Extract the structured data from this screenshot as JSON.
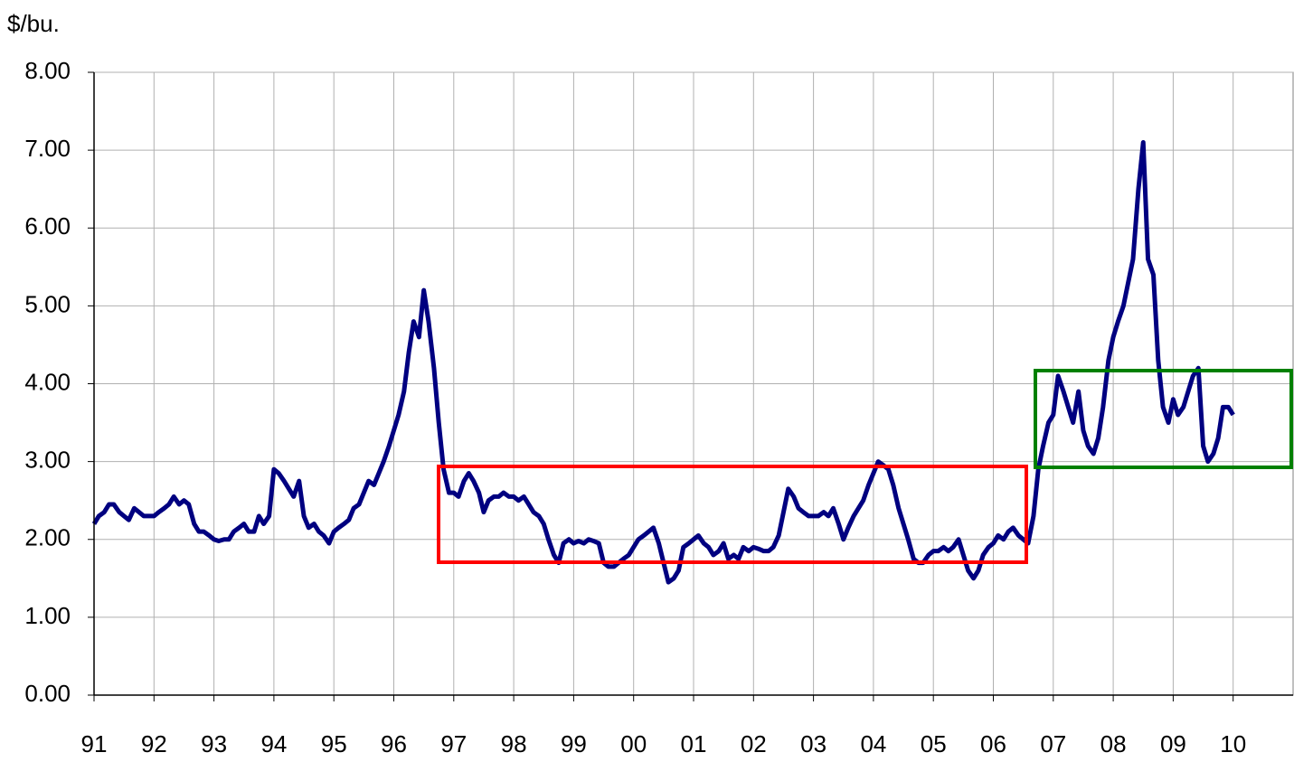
{
  "chart_data": {
    "type": "line",
    "y_label": "$/bu.",
    "xlim": [
      1991,
      2011
    ],
    "xticks": [
      {
        "value": 1991,
        "label": "91"
      },
      {
        "value": 1992,
        "label": "92"
      },
      {
        "value": 1993,
        "label": "93"
      },
      {
        "value": 1994,
        "label": "94"
      },
      {
        "value": 1995,
        "label": "95"
      },
      {
        "value": 1996,
        "label": "96"
      },
      {
        "value": 1997,
        "label": "97"
      },
      {
        "value": 1998,
        "label": "98"
      },
      {
        "value": 1999,
        "label": "99"
      },
      {
        "value": 2000,
        "label": "00"
      },
      {
        "value": 2001,
        "label": "01"
      },
      {
        "value": 2002,
        "label": "02"
      },
      {
        "value": 2003,
        "label": "03"
      },
      {
        "value": 2004,
        "label": "04"
      },
      {
        "value": 2005,
        "label": "05"
      },
      {
        "value": 2006,
        "label": "06"
      },
      {
        "value": 2007,
        "label": "07"
      },
      {
        "value": 2008,
        "label": "08"
      },
      {
        "value": 2009,
        "label": "09"
      },
      {
        "value": 2010,
        "label": "10"
      }
    ],
    "ylim": [
      0,
      8
    ],
    "yticks": [
      {
        "value": 0,
        "label": "0.00"
      },
      {
        "value": 1,
        "label": "1.00"
      },
      {
        "value": 2,
        "label": "2.00"
      },
      {
        "value": 3,
        "label": "3.00"
      },
      {
        "value": 4,
        "label": "4.00"
      },
      {
        "value": 5,
        "label": "5.00"
      },
      {
        "value": 6,
        "label": "6.00"
      },
      {
        "value": 7,
        "label": "7.00"
      },
      {
        "value": 8,
        "label": "8.00"
      }
    ],
    "grid": true,
    "x": [
      1991.0,
      1991.08,
      1991.17,
      1991.25,
      1991.33,
      1991.42,
      1991.5,
      1991.58,
      1991.67,
      1991.75,
      1991.83,
      1991.92,
      1992.0,
      1992.08,
      1992.17,
      1992.25,
      1992.33,
      1992.42,
      1992.5,
      1992.58,
      1992.67,
      1992.75,
      1992.83,
      1992.92,
      1993.0,
      1993.08,
      1993.17,
      1993.25,
      1993.33,
      1993.42,
      1993.5,
      1993.58,
      1993.67,
      1993.75,
      1993.83,
      1993.92,
      1994.0,
      1994.08,
      1994.17,
      1994.25,
      1994.33,
      1994.42,
      1994.5,
      1994.58,
      1994.67,
      1994.75,
      1994.83,
      1994.92,
      1995.0,
      1995.08,
      1995.17,
      1995.25,
      1995.33,
      1995.42,
      1995.5,
      1995.58,
      1995.67,
      1995.75,
      1995.83,
      1995.92,
      1996.0,
      1996.08,
      1996.17,
      1996.25,
      1996.33,
      1996.42,
      1996.5,
      1996.58,
      1996.67,
      1996.75,
      1996.83,
      1996.92,
      1997.0,
      1997.08,
      1997.17,
      1997.25,
      1997.33,
      1997.42,
      1997.5,
      1997.58,
      1997.67,
      1997.75,
      1997.83,
      1997.92,
      1998.0,
      1998.08,
      1998.17,
      1998.25,
      1998.33,
      1998.42,
      1998.5,
      1998.58,
      1998.67,
      1998.75,
      1998.83,
      1998.92,
      1999.0,
      1999.08,
      1999.17,
      1999.25,
      1999.33,
      1999.42,
      1999.5,
      1999.58,
      1999.67,
      1999.75,
      1999.83,
      1999.92,
      2000.0,
      2000.08,
      2000.17,
      2000.25,
      2000.33,
      2000.42,
      2000.5,
      2000.58,
      2000.67,
      2000.75,
      2000.83,
      2000.92,
      2001.0,
      2001.08,
      2001.17,
      2001.25,
      2001.33,
      2001.42,
      2001.5,
      2001.58,
      2001.67,
      2001.75,
      2001.83,
      2001.92,
      2002.0,
      2002.08,
      2002.17,
      2002.25,
      2002.33,
      2002.42,
      2002.5,
      2002.58,
      2002.67,
      2002.75,
      2002.83,
      2002.92,
      2003.0,
      2003.08,
      2003.17,
      2003.25,
      2003.33,
      2003.42,
      2003.5,
      2003.58,
      2003.67,
      2003.75,
      2003.83,
      2003.92,
      2004.0,
      2004.08,
      2004.17,
      2004.25,
      2004.33,
      2004.42,
      2004.5,
      2004.58,
      2004.67,
      2004.75,
      2004.83,
      2004.92,
      2005.0,
      2005.08,
      2005.17,
      2005.25,
      2005.33,
      2005.42,
      2005.5,
      2005.58,
      2005.67,
      2005.75,
      2005.83,
      2005.92,
      2006.0,
      2006.08,
      2006.17,
      2006.25,
      2006.33,
      2006.42,
      2006.5,
      2006.58,
      2006.67,
      2006.75,
      2006.83,
      2006.92,
      2007.0,
      2007.08,
      2007.17,
      2007.25,
      2007.33,
      2007.42,
      2007.5,
      2007.58,
      2007.67,
      2007.75,
      2007.83,
      2007.92,
      2008.0,
      2008.08,
      2008.17,
      2008.25,
      2008.33,
      2008.42,
      2008.5,
      2008.58,
      2008.67,
      2008.75,
      2008.83,
      2008.92,
      2009.0,
      2009.08,
      2009.17,
      2009.25,
      2009.33,
      2009.42,
      2009.5,
      2009.58,
      2009.67,
      2009.75,
      2009.83,
      2009.92,
      2010.0
    ],
    "series": [
      {
        "color": "#000080",
        "values": [
          2.2,
          2.3,
          2.35,
          2.45,
          2.45,
          2.35,
          2.3,
          2.25,
          2.4,
          2.35,
          2.3,
          2.3,
          2.3,
          2.35,
          2.4,
          2.45,
          2.55,
          2.45,
          2.5,
          2.45,
          2.2,
          2.1,
          2.1,
          2.05,
          2.0,
          1.98,
          2.0,
          2.0,
          2.1,
          2.15,
          2.2,
          2.1,
          2.1,
          2.3,
          2.2,
          2.3,
          2.9,
          2.85,
          2.75,
          2.65,
          2.55,
          2.75,
          2.3,
          2.15,
          2.2,
          2.1,
          2.05,
          1.95,
          2.1,
          2.15,
          2.2,
          2.25,
          2.4,
          2.45,
          2.6,
          2.75,
          2.7,
          2.85,
          3.0,
          3.2,
          3.4,
          3.6,
          3.9,
          4.4,
          4.8,
          4.6,
          5.2,
          4.8,
          4.2,
          3.5,
          2.9,
          2.6,
          2.6,
          2.55,
          2.75,
          2.85,
          2.75,
          2.6,
          2.35,
          2.5,
          2.55,
          2.55,
          2.6,
          2.55,
          2.55,
          2.5,
          2.55,
          2.45,
          2.35,
          2.3,
          2.2,
          2.0,
          1.8,
          1.7,
          1.95,
          2.0,
          1.95,
          1.98,
          1.95,
          2.0,
          1.98,
          1.95,
          1.7,
          1.65,
          1.65,
          1.7,
          1.75,
          1.8,
          1.9,
          2.0,
          2.05,
          2.1,
          2.15,
          1.95,
          1.7,
          1.45,
          1.5,
          1.6,
          1.9,
          1.95,
          2.0,
          2.05,
          1.95,
          1.9,
          1.8,
          1.85,
          1.95,
          1.75,
          1.8,
          1.75,
          1.9,
          1.85,
          1.9,
          1.88,
          1.85,
          1.85,
          1.9,
          2.05,
          2.35,
          2.65,
          2.55,
          2.4,
          2.35,
          2.3,
          2.3,
          2.3,
          2.35,
          2.3,
          2.4,
          2.2,
          2.0,
          2.15,
          2.3,
          2.4,
          2.5,
          2.7,
          2.85,
          3.0,
          2.95,
          2.9,
          2.7,
          2.4,
          2.2,
          2.0,
          1.75,
          1.7,
          1.7,
          1.8,
          1.85,
          1.85,
          1.9,
          1.85,
          1.9,
          2.0,
          1.8,
          1.6,
          1.5,
          1.6,
          1.8,
          1.9,
          1.95,
          2.05,
          2.0,
          2.1,
          2.15,
          2.05,
          2.0,
          1.95,
          2.3,
          2.9,
          3.2,
          3.5,
          3.6,
          4.1,
          3.9,
          3.7,
          3.5,
          3.9,
          3.4,
          3.2,
          3.1,
          3.3,
          3.7,
          4.3,
          4.6,
          4.8,
          5.0,
          5.3,
          5.6,
          6.5,
          7.1,
          5.6,
          5.4,
          4.3,
          3.7,
          3.5,
          3.8,
          3.6,
          3.7,
          3.9,
          4.1,
          4.2,
          3.2,
          3.0,
          3.1,
          3.3,
          3.7,
          3.7,
          3.6
        ]
      }
    ]
  }
}
